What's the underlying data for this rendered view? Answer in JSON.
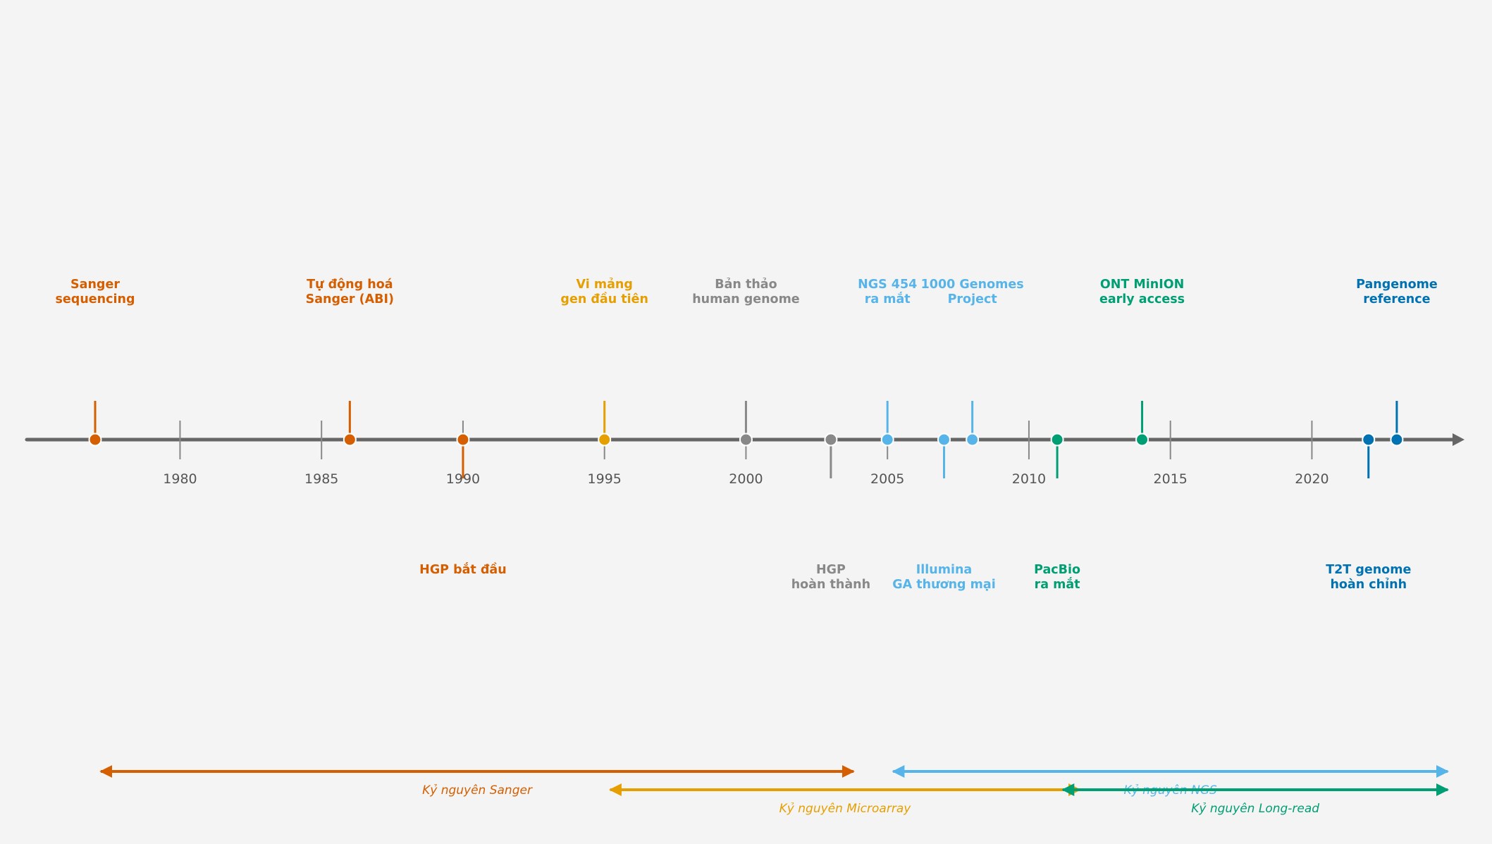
{
  "chart_data": {
    "type": "timeline",
    "title": "",
    "xlabel": "",
    "ylabel": "",
    "xlim": [
      1974.7,
      2025.3
    ],
    "grid": false,
    "axis_ticks": [
      1980,
      1985,
      1990,
      1995,
      2000,
      2005,
      2010,
      2015,
      2020
    ],
    "events": [
      {
        "year": 1977,
        "label": [
          "Sanger",
          "sequencing"
        ],
        "side": "above",
        "color": "#d55e00"
      },
      {
        "year": 1986,
        "label": [
          "Tự động hoá",
          "Sanger (ABI)"
        ],
        "side": "above",
        "color": "#d55e00"
      },
      {
        "year": 1990,
        "label": [
          "HGP bắt đầu"
        ],
        "side": "below",
        "color": "#d55e00"
      },
      {
        "year": 1995,
        "label": [
          "Vi mảng",
          "gen đầu tiên"
        ],
        "side": "above",
        "color": "#e69f00"
      },
      {
        "year": 2000,
        "label": [
          "Bản thảo",
          "human genome"
        ],
        "side": "above",
        "color": "#888888"
      },
      {
        "year": 2003,
        "label": [
          "HGP",
          "hoàn thành"
        ],
        "side": "below",
        "color": "#888888"
      },
      {
        "year": 2005,
        "label": [
          "NGS 454",
          "ra mắt"
        ],
        "side": "above",
        "color": "#56b4e9"
      },
      {
        "year": 2007,
        "label": [
          "Illumina",
          "GA thương mại"
        ],
        "side": "below",
        "color": "#56b4e9"
      },
      {
        "year": 2008,
        "label": [
          "1000 Genomes",
          "Project"
        ],
        "side": "above",
        "color": "#56b4e9"
      },
      {
        "year": 2011,
        "label": [
          "PacBio",
          "ra mắt"
        ],
        "side": "below",
        "color": "#009e73"
      },
      {
        "year": 2014,
        "label": [
          "ONT MinION",
          "early access"
        ],
        "side": "above",
        "color": "#009e73"
      },
      {
        "year": 2022,
        "label": [
          "T2T genome",
          "hoàn chỉnh"
        ],
        "side": "below",
        "color": "#0072b2"
      },
      {
        "year": 2023,
        "label": [
          "Pangenome",
          "reference"
        ],
        "side": "above",
        "color": "#0072b2"
      }
    ],
    "eras": [
      {
        "name": "Kỷ nguyên Sanger",
        "start": 1977,
        "end": 2004,
        "color": "#d55e00"
      },
      {
        "name": "Kỷ nguyên NGS",
        "start": 2005,
        "end": 2025,
        "color": "#56b4e9"
      },
      {
        "name": "Kỷ nguyên Microarray",
        "start": 1995,
        "end": 2012,
        "color": "#e69f00"
      },
      {
        "name": "Kỷ nguyên Long-read",
        "start": 2011,
        "end": 2025,
        "color": "#009e73"
      }
    ],
    "axis_color": "#666666"
  }
}
